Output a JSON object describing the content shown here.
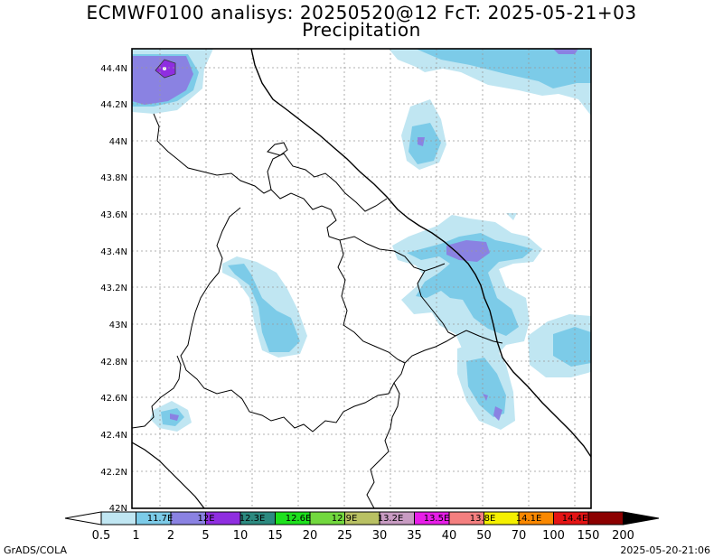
{
  "header": {
    "title": "ECMWF0100 analisys: 20250520@12 FcT: 2025-05-21+03",
    "subtitle": "Precipitation"
  },
  "map": {
    "lat_labels": [
      "44.4N",
      "44.2N",
      "44N",
      "43.8N",
      "43.6N",
      "43.4N",
      "43.2N",
      "43N",
      "42.8N",
      "42.6N",
      "42.4N",
      "42.2N",
      "42N"
    ],
    "lon_labels": [
      "11.7E",
      "12E",
      "12.3E",
      "12.6E",
      "12.9E",
      "13.2E",
      "13.5E",
      "13.8E",
      "14.1E",
      "14.4E"
    ]
  },
  "colorbar": {
    "levels": [
      "0.5",
      "1",
      "2",
      "5",
      "10",
      "15",
      "20",
      "25",
      "30",
      "35",
      "40",
      "50",
      "70",
      "100",
      "150",
      "200"
    ],
    "colors": [
      "#c0e6f2",
      "#7ccbe8",
      "#8a82e2",
      "#8f2ee0",
      "#2c8a80",
      "#1de01d",
      "#72d83e",
      "#b9c163",
      "#c89bc2",
      "#e81ee8",
      "#f47f7f",
      "#f5f000",
      "#fa8800",
      "#e41414",
      "#8c0000"
    ]
  },
  "footer": {
    "left": "GrADS/COLA",
    "right": "2025-05-20-21:06"
  }
}
